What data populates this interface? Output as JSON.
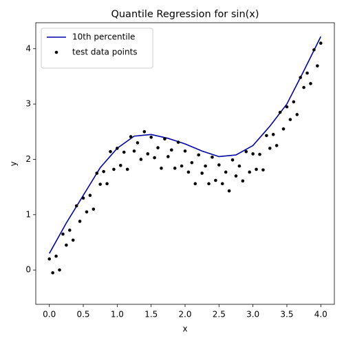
{
  "chart_data": {
    "type": "line",
    "title": "Quantile Regression for sin(x)",
    "x_label": "x",
    "y_label": "y",
    "xlim": [
      -0.2,
      4.2
    ],
    "ylim": [
      -0.62,
      4.47
    ],
    "xticks": [
      {
        "value": 0,
        "label": "0.0"
      },
      {
        "value": 0.5,
        "label": "0.5"
      },
      {
        "value": 1,
        "label": "1.0"
      },
      {
        "value": 1.5,
        "label": "1.5"
      },
      {
        "value": 2,
        "label": "2.0"
      },
      {
        "value": 2.5,
        "label": "2.5"
      },
      {
        "value": 3,
        "label": "3.0"
      },
      {
        "value": 3.5,
        "label": "3.5"
      },
      {
        "value": 4,
        "label": "4.0"
      }
    ],
    "yticks": [
      0,
      1,
      2,
      3,
      4
    ],
    "legend": "upper left",
    "grid": false,
    "series": [
      {
        "name": "10th percentile",
        "type": "line",
        "color": "#0000aa",
        "x": [
          0,
          0.25,
          0.5,
          0.75,
          1,
          1.25,
          1.5,
          1.75,
          2,
          2.25,
          2.5,
          2.75,
          3,
          3.25,
          3.5,
          3.75,
          4
        ],
        "values": [
          0.3,
          0.85,
          1.35,
          1.85,
          2.2,
          2.42,
          2.45,
          2.38,
          2.28,
          2.15,
          2.05,
          2.08,
          2.25,
          2.6,
          3.0,
          3.6,
          4.22
        ]
      },
      {
        "name": "test data points",
        "type": "scatter",
        "color": "#000000",
        "x": [
          0,
          0.05,
          0.1,
          0.15,
          0.2,
          0.25,
          0.3,
          0.35,
          0.4,
          0.45,
          0.5,
          0.55,
          0.6,
          0.65,
          0.7,
          0.75,
          0.8,
          0.85,
          0.9,
          0.95,
          1,
          1.05,
          1.1,
          1.15,
          1.2,
          1.25,
          1.3,
          1.35,
          1.4,
          1.45,
          1.5,
          1.55,
          1.6,
          1.65,
          1.7,
          1.75,
          1.8,
          1.85,
          1.9,
          1.95,
          2,
          2.05,
          2.1,
          2.15,
          2.2,
          2.25,
          2.3,
          2.35,
          2.4,
          2.45,
          2.5,
          2.55,
          2.6,
          2.65,
          2.7,
          2.75,
          2.8,
          2.85,
          2.9,
          2.95,
          3,
          3.05,
          3.1,
          3.15,
          3.2,
          3.25,
          3.3,
          3.35,
          3.4,
          3.45,
          3.5,
          3.55,
          3.6,
          3.65,
          3.7,
          3.75,
          3.8,
          3.85,
          3.9,
          3.95,
          4
        ],
        "values": [
          0.2,
          -0.05,
          0.25,
          0.0,
          0.65,
          0.45,
          0.72,
          0.54,
          1.16,
          0.88,
          1.3,
          1.05,
          1.35,
          1.1,
          1.75,
          1.55,
          1.78,
          1.56,
          2.14,
          1.82,
          2.2,
          1.89,
          2.13,
          1.82,
          2.41,
          2.15,
          2.3,
          2.0,
          2.5,
          2.1,
          2.4,
          2.03,
          2.21,
          1.84,
          2.37,
          2.05,
          2.17,
          1.84,
          2.31,
          1.88,
          2.15,
          1.77,
          1.94,
          1.56,
          2.08,
          1.75,
          1.88,
          1.56,
          2.04,
          1.62,
          1.9,
          1.56,
          1.77,
          1.43,
          1.99,
          1.7,
          1.88,
          1.61,
          2.14,
          1.77,
          2.1,
          1.82,
          2.09,
          1.81,
          2.43,
          2.2,
          2.45,
          2.25,
          2.85,
          2.55,
          2.95,
          2.72,
          3.04,
          2.81,
          3.48,
          3.3,
          3.56,
          3.37,
          3.98,
          3.69,
          4.1
        ]
      }
    ]
  }
}
